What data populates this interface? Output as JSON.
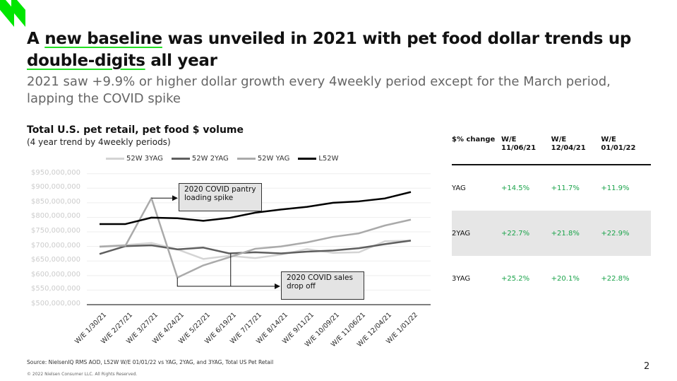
{
  "title": {
    "pre": "A ",
    "u1": "new baseline",
    "mid": " was unveiled in 2021 with pet food dollar trends up ",
    "u2": "double-digits",
    "post": " all year"
  },
  "subtitle": "2021 saw +9.9% or higher dollar growth every 4weekly period except for the March period, lapping the COVID spike",
  "brand_color": "#00e600",
  "chart_data": {
    "type": "line",
    "title": "Total U.S. pet retail, pet food $ volume",
    "subtitle": "(4 year trend by 4weekly periods)",
    "ylim": [
      500000000,
      950000000
    ],
    "yticks": [
      "$500,000,000",
      "$550,000,000",
      "$600,000,000",
      "$650,000,000",
      "$700,000,000",
      "$750,000,000",
      "$800,000,000",
      "$850,000,000",
      "$900,000,000",
      "$950,000,000"
    ],
    "grid": true,
    "legend": "top",
    "categories": [
      "W/E 1/30/21",
      "W/E 2/27/21",
      "W/E 3/27/21",
      "W/E 4/24/21",
      "W/E 5/22/21",
      "W/E 6/19/21",
      "W/E 7/17/21",
      "W/E 8/14/21",
      "W/E 9/11/21",
      "W/E 10/09/21",
      "W/E 11/06/21",
      "W/E 12/04/21",
      "W/E 1/01/22"
    ],
    "series": [
      {
        "name": "52W 3YAG",
        "color": "#d4d4d4",
        "values": [
          700,
          705,
          712,
          690,
          657,
          668,
          660,
          672,
          691,
          678,
          680,
          718,
          720
        ]
      },
      {
        "name": "52W 2YAG",
        "color": "#5f5f5f",
        "values": [
          674,
          701,
          704,
          690,
          696,
          676,
          680,
          676,
          682,
          686,
          694,
          708,
          720
        ]
      },
      {
        "name": "52W YAG",
        "color": "#aaaaaa",
        "values": [
          699,
          703,
          866,
          593,
          635,
          663,
          692,
          700,
          714,
          733,
          745,
          772,
          792
        ]
      },
      {
        "name": "L52W",
        "color": "#000000",
        "values": [
          777,
          777,
          799,
          797,
          788,
          798,
          816,
          827,
          836,
          850,
          855,
          865,
          887
        ]
      }
    ],
    "unit_multiplier": 1000000,
    "annotations": [
      {
        "text": "2020 COVID pantry loading spike"
      },
      {
        "text": "2020 COVID sales drop off"
      }
    ]
  },
  "table": {
    "headers": [
      "$% change",
      "W/E 11/06/21",
      "W/E 12/04/21",
      "W/E 01/01/22"
    ],
    "rows": [
      {
        "label": "YAG",
        "values": [
          "+14.5%",
          "+11.7%",
          "+11.9%"
        ]
      },
      {
        "label": "2YAG",
        "values": [
          "+22.7%",
          "+21.8%",
          "+22.9%"
        ]
      },
      {
        "label": "3YAG",
        "values": [
          "+25.2%",
          "+20.1%",
          "+22.8%"
        ]
      }
    ]
  },
  "source": "Source: NielsenIQ RMS AOD, L52W W/E 01/01/22 vs YAG, 2YAG, and 3YAG, Total US Pet Retail",
  "copyright": "© 2022 Nielsen Consumer LLC. All Rights Reserved.",
  "page_number": "2"
}
